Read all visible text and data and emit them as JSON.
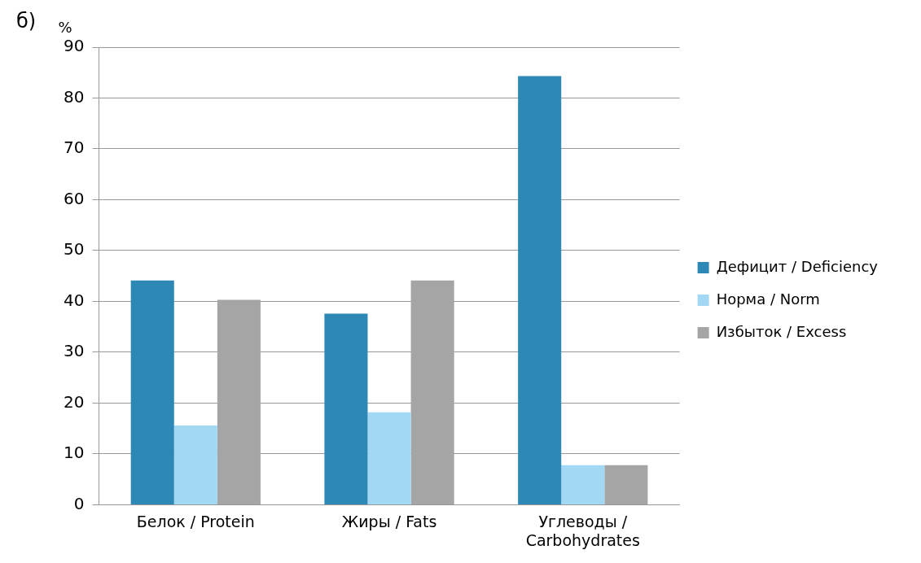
{
  "chart_data": {
    "type": "bar",
    "ylabel": "%",
    "annotations": [
      "б)"
    ],
    "categories": [
      "Белок / Protein",
      "Жиры / Fats",
      "Углеводы / Carbohydrates"
    ],
    "series": [
      {
        "name": "Дефицит / Deficiency",
        "color": "#2e88b6",
        "values": [
          44.1,
          37.6,
          84.3
        ]
      },
      {
        "name": "Норма / Norm",
        "color": "#a3d8f5",
        "values": [
          15.6,
          18.2,
          7.8
        ]
      },
      {
        "name": "Избыток / Excess",
        "color": "#a5a5a5",
        "values": [
          40.3,
          44.1,
          7.8
        ]
      }
    ],
    "ylim": [
      0,
      90
    ],
    "yticks": [
      0,
      10,
      20,
      30,
      40,
      50,
      60,
      70,
      80,
      90
    ],
    "grid": "y",
    "legend": "right"
  }
}
